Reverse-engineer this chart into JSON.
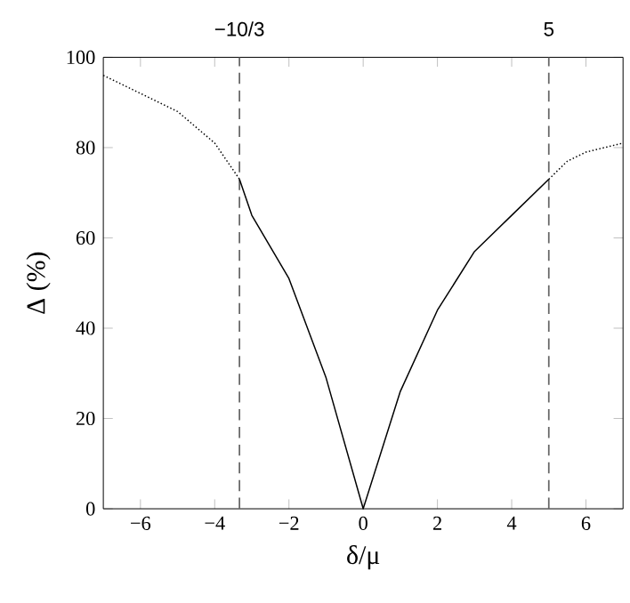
{
  "chart_data": {
    "type": "line",
    "xlabel": "δ/μ",
    "ylabel": "Δ (%)",
    "xlim": [
      -7,
      7
    ],
    "ylim": [
      0,
      100
    ],
    "xticks": [
      {
        "value": -6,
        "label": "−6"
      },
      {
        "value": -4,
        "label": "−4"
      },
      {
        "value": -2,
        "label": "−2"
      },
      0,
      2,
      4,
      6
    ],
    "yticks": [
      0,
      20,
      40,
      60,
      80,
      100
    ],
    "grid": false,
    "marker": "none",
    "series": [
      {
        "color": "#000000",
        "line_style": "dotted",
        "x": [
          -7,
          -6,
          -5,
          -4,
          -3.333
        ],
        "values": [
          96,
          92,
          88,
          81,
          73
        ]
      },
      {
        "color": "#000000",
        "line_style": "solid",
        "x": [
          -3.333,
          -3,
          -2.5,
          -2,
          -1,
          0,
          1,
          2,
          3,
          4,
          5
        ],
        "values": [
          73,
          65,
          58,
          51,
          29,
          0,
          26,
          44,
          57,
          65,
          73
        ]
      },
      {
        "color": "#000000",
        "line_style": "dotted",
        "x": [
          5,
          5.5,
          6,
          7
        ],
        "values": [
          73,
          77,
          79,
          81
        ]
      }
    ],
    "ref_lines": [
      {
        "axis": "x",
        "value": -3.333,
        "label": "−10/3",
        "color": "#666666",
        "line_style": "dashed"
      },
      {
        "axis": "x",
        "value": 5,
        "label": "5",
        "color": "#666666",
        "line_style": "dashed"
      }
    ]
  }
}
